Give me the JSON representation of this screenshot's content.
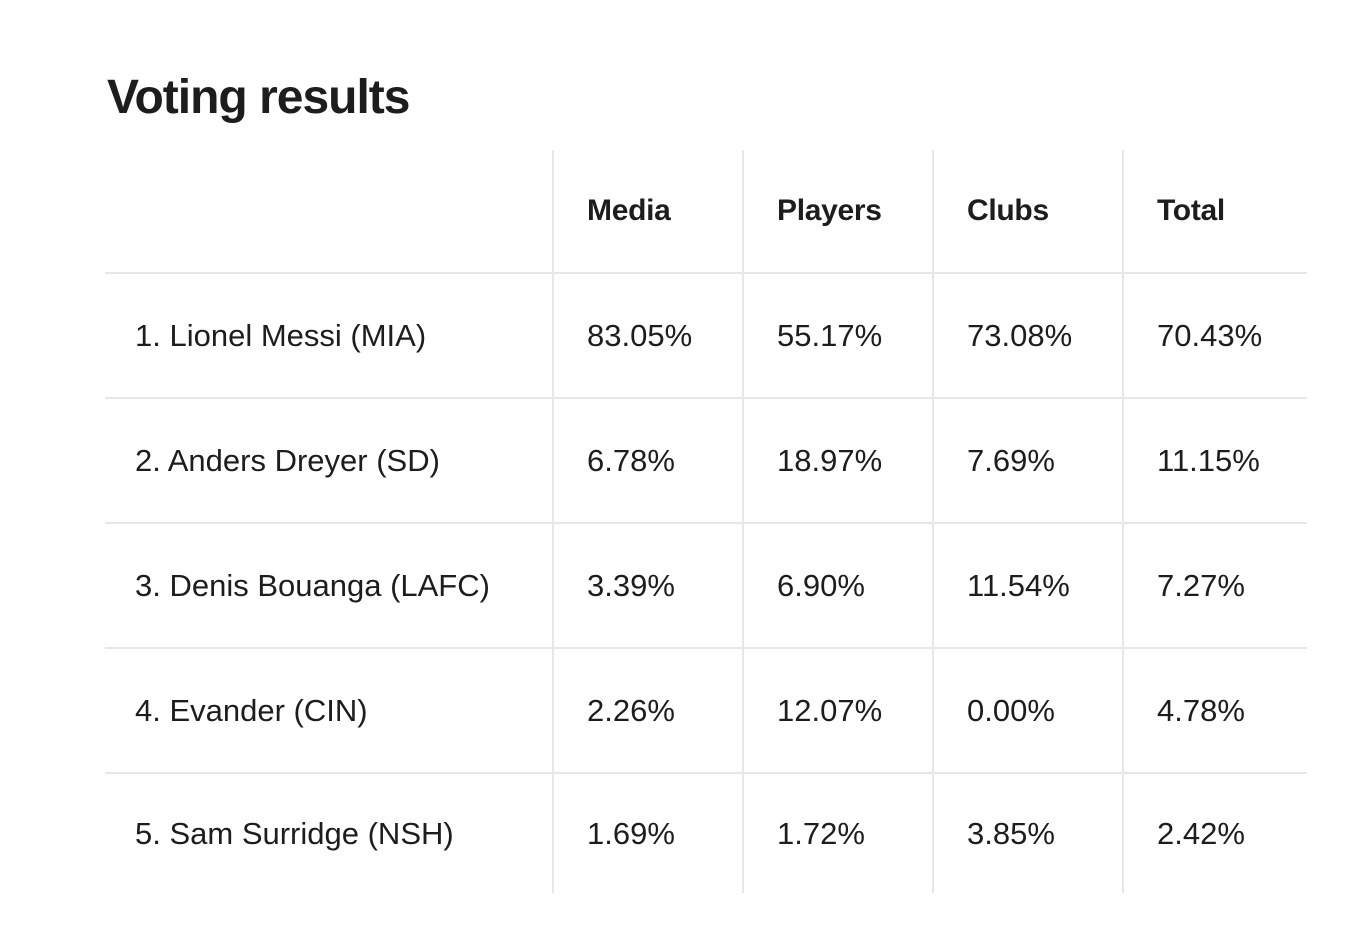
{
  "page": {
    "title": "Voting results"
  },
  "table": {
    "columns": [
      "Media",
      "Players",
      "Clubs",
      "Total"
    ],
    "rows": [
      {
        "label": "1. Lionel Messi (MIA)",
        "values": [
          "83.05%",
          "55.17%",
          "73.08%",
          "70.43%"
        ]
      },
      {
        "label": "2. Anders Dreyer (SD)",
        "values": [
          "6.78%",
          "18.97%",
          "7.69%",
          "11.15%"
        ]
      },
      {
        "label": "3. Denis Bouanga (LAFC)",
        "values": [
          "3.39%",
          "6.90%",
          "11.54%",
          "7.27%"
        ]
      },
      {
        "label": "4. Evander (CIN)",
        "values": [
          "2.26%",
          "12.07%",
          "0.00%",
          "4.78%"
        ]
      },
      {
        "label": "5. Sam Surridge (NSH)",
        "values": [
          "1.69%",
          "1.72%",
          "3.85%",
          "2.42%"
        ]
      }
    ]
  },
  "colors": {
    "text": "#1d1d1d",
    "grid_line": "#e7e7e7",
    "background": "#ffffff"
  },
  "chart_data": {
    "type": "table",
    "title": "Voting results",
    "categories": [
      "Media",
      "Players",
      "Clubs",
      "Total"
    ],
    "series": [
      {
        "name": "1. Lionel Messi (MIA)",
        "values": [
          83.05,
          55.17,
          73.08,
          70.43
        ]
      },
      {
        "name": "2. Anders Dreyer (SD)",
        "values": [
          6.78,
          18.97,
          7.69,
          11.15
        ]
      },
      {
        "name": "3. Denis Bouanga (LAFC)",
        "values": [
          3.39,
          6.9,
          11.54,
          7.27
        ]
      },
      {
        "name": "4. Evander (CIN)",
        "values": [
          2.26,
          12.07,
          0.0,
          4.78
        ]
      },
      {
        "name": "5. Sam Surridge (NSH)",
        "values": [
          1.69,
          1.72,
          3.85,
          2.42
        ]
      }
    ],
    "value_unit": "%"
  }
}
